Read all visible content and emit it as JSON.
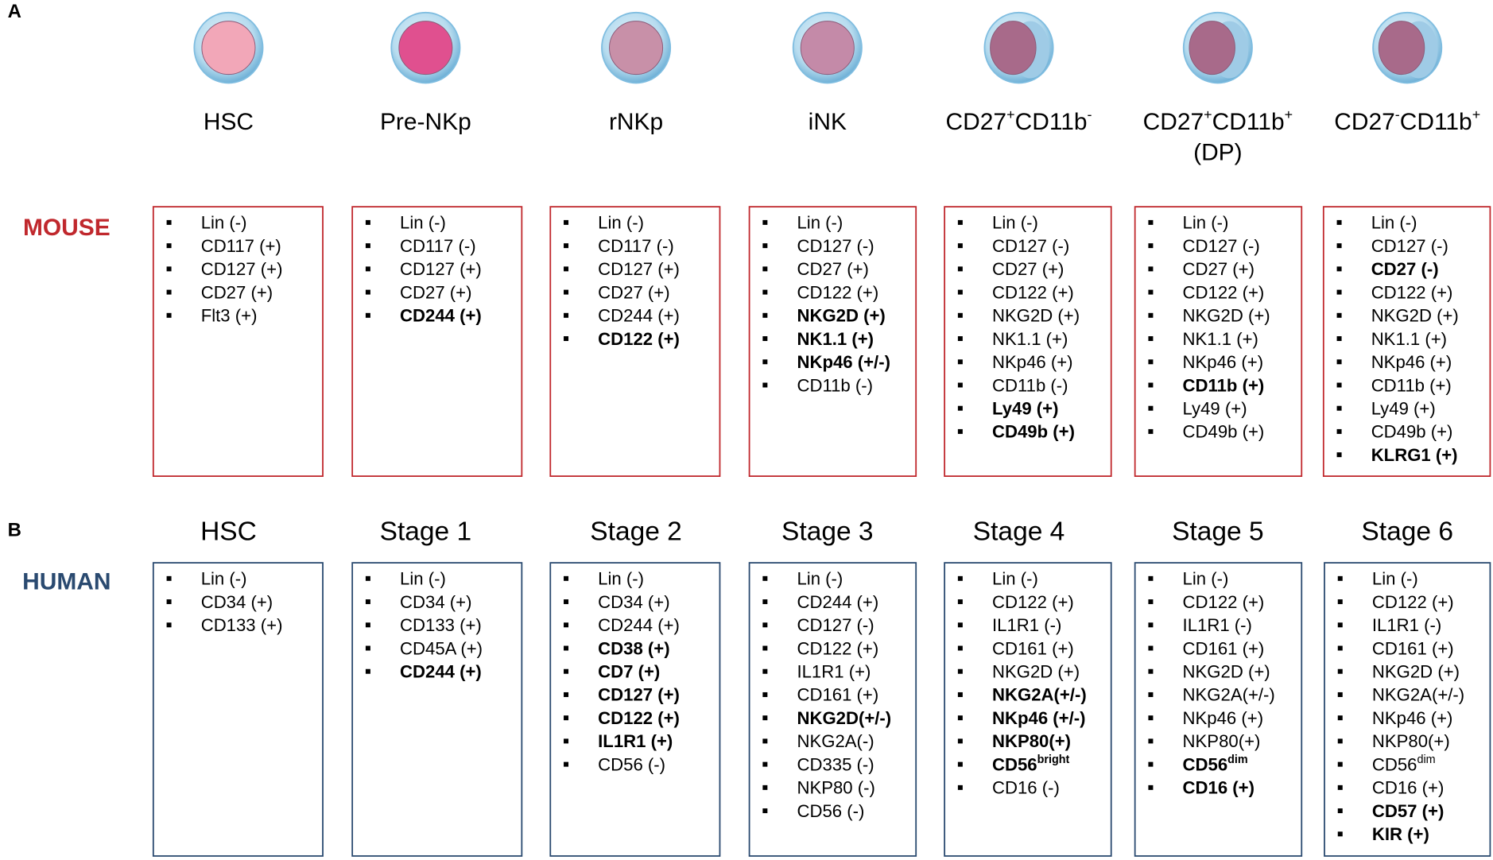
{
  "panel_a": {
    "label": "A",
    "species": "MOUSE",
    "color": "#c0282d",
    "stages": [
      {
        "name_lines": [
          [
            {
              "text": "HSC"
            }
          ]
        ],
        "markers": [
          {
            "text": "Lin (-)"
          },
          {
            "text": "CD117 (+)"
          },
          {
            "text": "CD127 (+)"
          },
          {
            "text": "CD27 (+)"
          },
          {
            "text": "Flt3 (+)"
          }
        ]
      },
      {
        "name_lines": [
          [
            {
              "text": "Pre-NKp"
            }
          ]
        ],
        "markers": [
          {
            "text": "Lin (-)"
          },
          {
            "text": "CD117 (-)"
          },
          {
            "text": "CD127 (+)"
          },
          {
            "text": "CD27 (+)"
          },
          {
            "text": "CD244 (+)",
            "bold": true
          }
        ]
      },
      {
        "name_lines": [
          [
            {
              "text": "rNKp"
            }
          ]
        ],
        "markers": [
          {
            "text": "Lin (-)"
          },
          {
            "text": "CD117 (-)"
          },
          {
            "text": "CD127 (+)"
          },
          {
            "text": "CD27 (+)"
          },
          {
            "text": "CD244 (+)"
          },
          {
            "text": "CD122 (+)",
            "bold": true
          }
        ]
      },
      {
        "name_lines": [
          [
            {
              "text": "iNK"
            }
          ]
        ],
        "markers": [
          {
            "text": "Lin (-)"
          },
          {
            "text": "CD127 (-)"
          },
          {
            "text": "CD27 (+)"
          },
          {
            "text": "CD122 (+)"
          },
          {
            "text": "NKG2D (+)",
            "bold": true
          },
          {
            "text": "NK1.1 (+)",
            "bold": true
          },
          {
            "text": "NKp46 (+/-)",
            "bold": true
          },
          {
            "text": "CD11b (-)"
          }
        ]
      },
      {
        "name_lines": [
          [
            {
              "text": "CD27"
            },
            {
              "text": "+",
              "sup": true
            },
            {
              "text": "CD11b"
            },
            {
              "text": "-",
              "sup": true
            }
          ]
        ],
        "markers": [
          {
            "text": "Lin (-)"
          },
          {
            "text": "CD127 (-)"
          },
          {
            "text": "CD27 (+)"
          },
          {
            "text": "CD122 (+)"
          },
          {
            "text": "NKG2D (+)"
          },
          {
            "text": "NK1.1 (+)"
          },
          {
            "text": "NKp46 (+)"
          },
          {
            "text": "CD11b (-)"
          },
          {
            "text": "Ly49 (+)",
            "bold": true
          },
          {
            "text": "CD49b (+)",
            "bold": true
          }
        ]
      },
      {
        "name_lines": [
          [
            {
              "text": "CD27"
            },
            {
              "text": "+",
              "sup": true
            },
            {
              "text": "CD11b"
            },
            {
              "text": "+",
              "sup": true
            }
          ],
          [
            {
              "text": "(DP)"
            }
          ]
        ],
        "markers": [
          {
            "text": "Lin (-)"
          },
          {
            "text": "CD127 (-)"
          },
          {
            "text": "CD27 (+)"
          },
          {
            "text": "CD122 (+)"
          },
          {
            "text": "NKG2D (+)"
          },
          {
            "text": "NK1.1 (+)"
          },
          {
            "text": "NKp46 (+)"
          },
          {
            "text": "CD11b (+)",
            "bold": true
          },
          {
            "text": "Ly49 (+)"
          },
          {
            "text": "CD49b (+)"
          }
        ]
      },
      {
        "name_lines": [
          [
            {
              "text": "CD27"
            },
            {
              "text": "-",
              "sup": true
            },
            {
              "text": "CD11b"
            },
            {
              "text": "+",
              "sup": true
            }
          ]
        ],
        "markers": [
          {
            "text": "Lin (-)"
          },
          {
            "text": "CD127 (-)"
          },
          {
            "text": "CD27 (-)",
            "bold": true
          },
          {
            "text": "CD122 (+)"
          },
          {
            "text": "NKG2D (+)"
          },
          {
            "text": "NK1.1 (+)"
          },
          {
            "text": "NKp46 (+)"
          },
          {
            "text": "CD11b (+)"
          },
          {
            "text": "Ly49 (+)"
          },
          {
            "text": "CD49b (+)"
          },
          {
            "text": "KLRG1 (+)",
            "bold": true
          }
        ]
      }
    ]
  },
  "panel_b": {
    "label": "B",
    "species": "HUMAN",
    "color": "#2a4a70",
    "stages": [
      {
        "name": "HSC",
        "markers": [
          {
            "text": "Lin (-)"
          },
          {
            "text": "CD34 (+)"
          },
          {
            "text": "CD133 (+)"
          }
        ]
      },
      {
        "name": "Stage 1",
        "markers": [
          {
            "text": "Lin (-)"
          },
          {
            "text": "CD34 (+)"
          },
          {
            "text": "CD133 (+)"
          },
          {
            "text": "CD45A (+)"
          },
          {
            "text": "CD244 (+)",
            "bold": true
          }
        ]
      },
      {
        "name": "Stage 2",
        "markers": [
          {
            "text": "Lin (-)"
          },
          {
            "text": "CD34 (+)"
          },
          {
            "text": "CD244 (+)"
          },
          {
            "text": "CD38 (+)",
            "bold": true
          },
          {
            "text": "CD7 (+)",
            "bold": true
          },
          {
            "text": "CD127 (+)",
            "bold": true
          },
          {
            "text": "CD122 (+)",
            "bold": true
          },
          {
            "text": "IL1R1 (+)",
            "bold": true
          },
          {
            "text": "CD56 (-)"
          }
        ]
      },
      {
        "name": "Stage 3",
        "markers": [
          {
            "text": "Lin (-)"
          },
          {
            "text": "CD244 (+)"
          },
          {
            "text": "CD127 (-)"
          },
          {
            "text": "CD122 (+)"
          },
          {
            "text": "IL1R1 (+)"
          },
          {
            "text": "CD161 (+)"
          },
          {
            "text": "NKG2D(+/-)",
            "bold": true
          },
          {
            "text": "NKG2A(-)"
          },
          {
            "text": "CD335 (-)"
          },
          {
            "text": "NKP80 (-)"
          },
          {
            "text": "CD56 (-)"
          }
        ]
      },
      {
        "name": "Stage 4",
        "markers": [
          {
            "text": "Lin (-)"
          },
          {
            "text": "CD122 (+)"
          },
          {
            "text": "IL1R1 (-)"
          },
          {
            "text": "CD161 (+)"
          },
          {
            "text": "NKG2D (+)"
          },
          {
            "text": "NKG2A(+/-)",
            "bold": true
          },
          {
            "text": "NKp46 (+/-)",
            "bold": true
          },
          {
            "text": "NKP80(+)",
            "bold": true
          },
          {
            "text": "CD56",
            "sup": "bright",
            "bold": true
          },
          {
            "text": "CD16 (-)"
          }
        ]
      },
      {
        "name": "Stage 5",
        "markers": [
          {
            "text": "Lin (-)"
          },
          {
            "text": "CD122 (+)"
          },
          {
            "text": "IL1R1 (-)"
          },
          {
            "text": "CD161 (+)"
          },
          {
            "text": "NKG2D (+)"
          },
          {
            "text": "NKG2A(+/-)"
          },
          {
            "text": "NKp46 (+)"
          },
          {
            "text": "NKP80(+)"
          },
          {
            "text": "CD56",
            "sup": "dim",
            "bold": true
          },
          {
            "text": "CD16 (+)",
            "bold": true
          }
        ]
      },
      {
        "name": "Stage 6",
        "markers": [
          {
            "text": "Lin (-)"
          },
          {
            "text": "CD122 (+)"
          },
          {
            "text": "IL1R1 (-)"
          },
          {
            "text": "CD161 (+)"
          },
          {
            "text": "NKG2D (+)"
          },
          {
            "text": "NKG2A(+/-)"
          },
          {
            "text": "NKp46 (+)"
          },
          {
            "text": "NKP80(+)"
          },
          {
            "text": "CD56",
            "sup": "dim"
          },
          {
            "text": "CD16 (+)"
          },
          {
            "text": "CD57 (+)",
            "bold": true
          },
          {
            "text": "KIR (+)",
            "bold": true
          }
        ]
      }
    ]
  }
}
